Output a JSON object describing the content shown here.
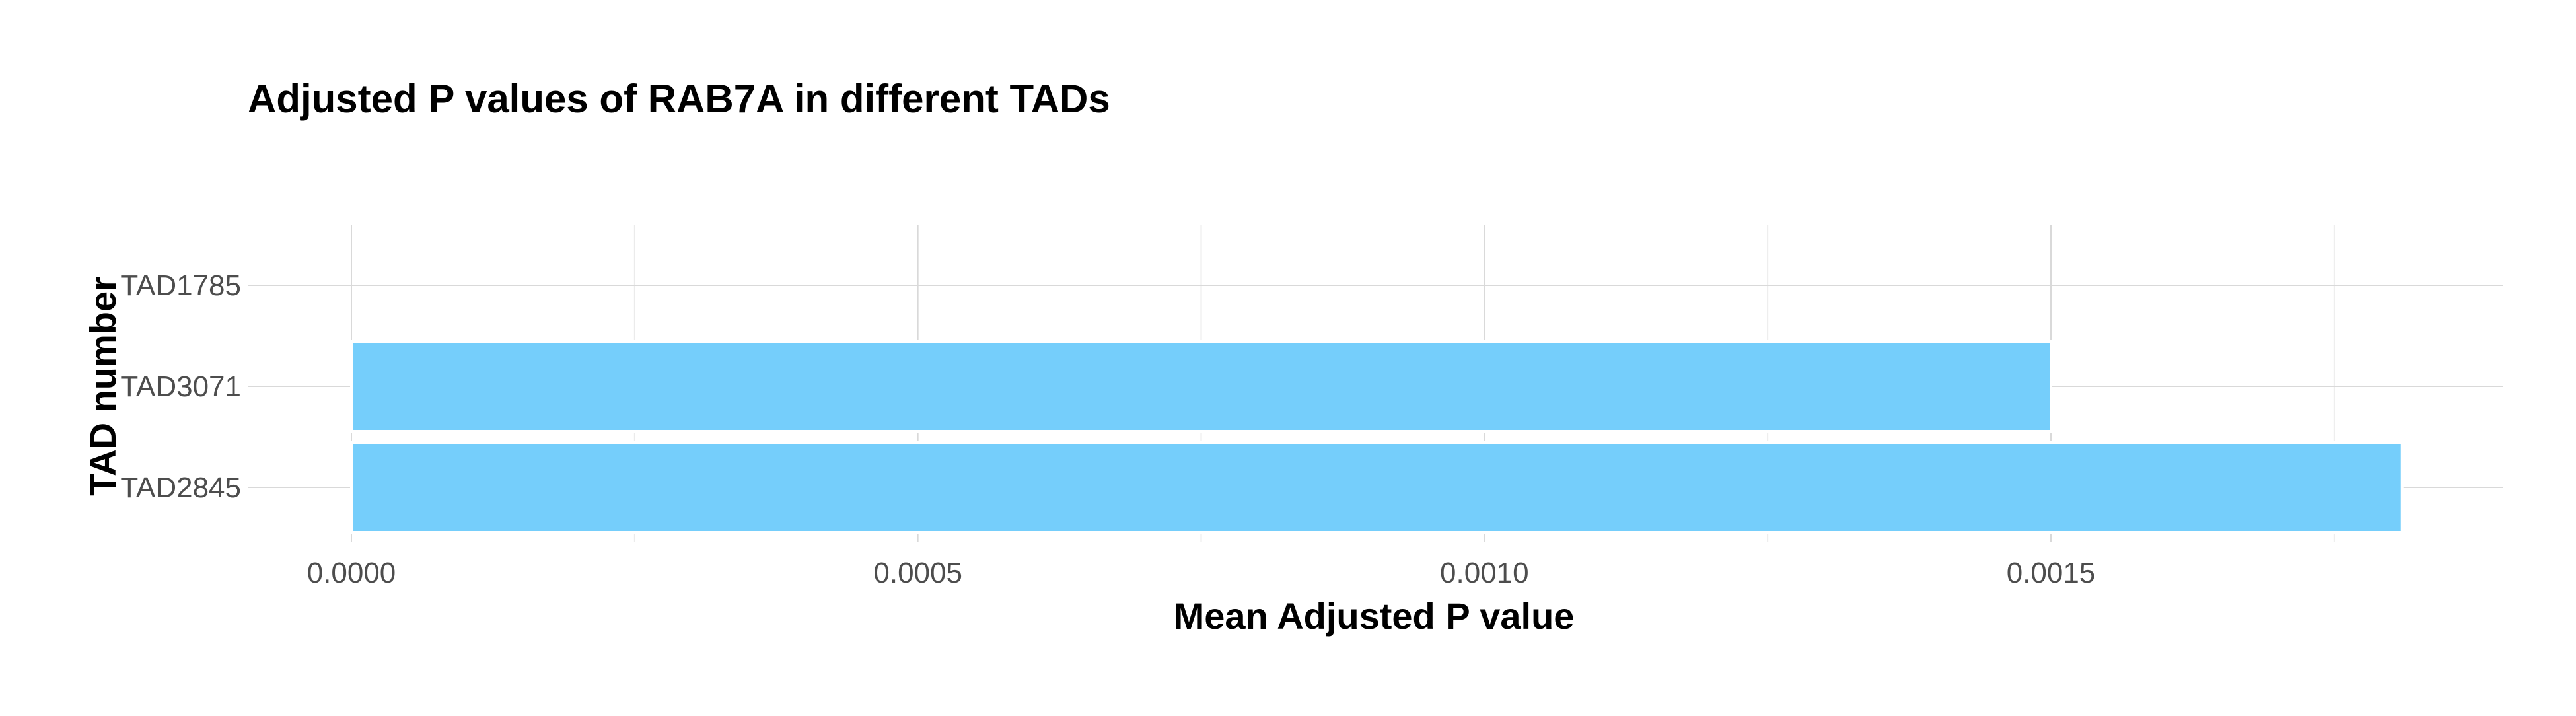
{
  "chart_data": {
    "type": "bar",
    "orientation": "horizontal",
    "title": "Adjusted P values of RAB7A in different TADs",
    "xlabel": "Mean Adjusted P value",
    "ylabel": "TAD number",
    "categories": [
      "TAD1785",
      "TAD3071",
      "TAD2845"
    ],
    "values": [
      0,
      0.0015,
      0.00181
    ],
    "xlim": [
      0,
      0.0019
    ],
    "x_ticks": [
      0,
      0.0005,
      0.001,
      0.0015
    ],
    "x_tick_labels": [
      "0.0000",
      "0.0005",
      "0.0010",
      "0.0015"
    ],
    "grid": true,
    "legend": "none",
    "bar_color": "#75CEFB"
  }
}
